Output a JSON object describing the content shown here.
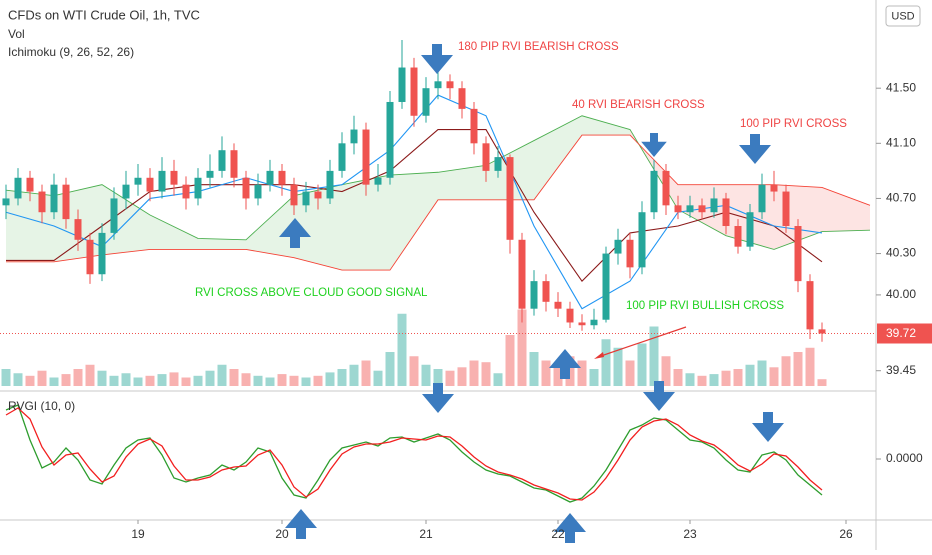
{
  "chart_data": {
    "type": "candlestick",
    "title": "CFDs on WTI Crude Oil, 1h, TVC",
    "volume_label": "Vol",
    "ichimoku_label": "Ichimoku (9, 26, 52, 26)",
    "currency": "USD",
    "up_color": "#26a69a",
    "down_color": "#ef5350",
    "xlim": [
      -0.5,
      72.5
    ],
    "xticks": [
      {
        "value": 11,
        "label": "19"
      },
      {
        "value": 23,
        "label": "20"
      },
      {
        "value": 35,
        "label": "21"
      },
      {
        "value": 46,
        "label": "22"
      },
      {
        "value": 57,
        "label": "23"
      },
      {
        "value": 70,
        "label": "26"
      }
    ],
    "ylim": [
      39.31,
      42.14
    ],
    "yticks": [
      {
        "value": 41.5,
        "label": "41.50"
      },
      {
        "value": 41.1,
        "label": "41.10"
      },
      {
        "value": 40.7,
        "label": "40.70"
      },
      {
        "value": 40.3,
        "label": "40.30"
      },
      {
        "value": 40,
        "label": "40.00"
      },
      39.45
    ],
    "last_price": 39.72,
    "candles": [
      [
        40.65,
        40.8,
        40.55,
        40.7
      ],
      [
        40.7,
        40.92,
        40.65,
        40.85
      ],
      [
        40.85,
        40.9,
        40.68,
        40.75
      ],
      [
        40.75,
        40.8,
        40.52,
        40.6
      ],
      [
        40.6,
        40.88,
        40.55,
        40.8
      ],
      [
        40.8,
        40.85,
        40.48,
        40.55
      ],
      [
        40.55,
        40.62,
        40.32,
        40.4
      ],
      [
        40.4,
        40.45,
        40.08,
        40.15
      ],
      [
        40.15,
        40.52,
        40.1,
        40.45
      ],
      [
        40.45,
        40.78,
        40.4,
        40.7
      ],
      [
        40.7,
        40.9,
        40.62,
        40.8
      ],
      [
        40.8,
        40.95,
        40.72,
        40.85
      ],
      [
        40.85,
        40.92,
        40.68,
        40.75
      ],
      [
        40.75,
        41.0,
        40.7,
        40.9
      ],
      [
        40.9,
        40.98,
        40.72,
        40.8
      ],
      [
        40.8,
        40.86,
        40.62,
        40.7
      ],
      [
        40.7,
        40.92,
        40.65,
        40.85
      ],
      [
        40.85,
        41.02,
        40.78,
        40.9
      ],
      [
        40.9,
        41.15,
        40.85,
        41.05
      ],
      [
        41.05,
        41.1,
        40.78,
        40.85
      ],
      [
        40.85,
        40.9,
        40.62,
        40.7
      ],
      [
        40.7,
        40.88,
        40.65,
        40.8
      ],
      [
        40.8,
        40.98,
        40.75,
        40.9
      ],
      [
        40.9,
        40.95,
        40.72,
        40.8
      ],
      [
        40.8,
        40.85,
        40.58,
        40.65
      ],
      [
        40.65,
        40.82,
        40.6,
        40.75
      ],
      [
        40.75,
        40.8,
        40.62,
        40.7
      ],
      [
        40.7,
        40.98,
        40.66,
        40.9
      ],
      [
        40.9,
        41.18,
        40.85,
        41.1
      ],
      [
        41.1,
        41.3,
        41.02,
        41.2
      ],
      [
        41.2,
        41.25,
        40.72,
        40.8
      ],
      [
        40.8,
        40.95,
        40.75,
        40.85
      ],
      [
        40.85,
        41.48,
        40.8,
        41.4
      ],
      [
        41.4,
        41.85,
        41.35,
        41.65
      ],
      [
        41.65,
        41.72,
        41.22,
        41.3
      ],
      [
        41.3,
        41.58,
        41.25,
        41.5
      ],
      [
        41.5,
        41.62,
        41.42,
        41.55
      ],
      [
        41.55,
        41.6,
        41.42,
        41.5
      ],
      [
        41.5,
        41.55,
        41.28,
        41.35
      ],
      [
        41.35,
        41.4,
        41.02,
        41.1
      ],
      [
        41.1,
        41.15,
        40.82,
        40.9
      ],
      [
        40.9,
        41.08,
        40.85,
        41.0
      ],
      [
        41.0,
        41.02,
        40.3,
        40.4
      ],
      [
        40.4,
        40.45,
        39.8,
        39.9
      ],
      [
        39.9,
        40.18,
        39.85,
        40.1
      ],
      [
        40.1,
        40.15,
        39.88,
        39.95
      ],
      [
        39.95,
        40.02,
        39.84,
        39.9
      ],
      [
        39.9,
        39.95,
        39.76,
        39.8
      ],
      [
        39.8,
        39.86,
        39.74,
        39.78
      ],
      [
        39.78,
        39.9,
        39.75,
        39.82
      ],
      [
        39.82,
        40.35,
        39.8,
        40.3
      ],
      [
        40.3,
        40.48,
        40.22,
        40.4
      ],
      [
        40.4,
        40.45,
        40.12,
        40.2
      ],
      [
        40.2,
        40.68,
        40.15,
        40.6
      ],
      [
        40.6,
        40.98,
        40.55,
        40.9
      ],
      [
        40.9,
        40.95,
        40.58,
        40.65
      ],
      [
        40.65,
        40.72,
        40.55,
        40.6
      ],
      [
        40.6,
        40.72,
        40.56,
        40.65
      ],
      [
        40.65,
        40.7,
        40.55,
        40.6
      ],
      [
        40.6,
        40.78,
        40.56,
        40.7
      ],
      [
        40.7,
        40.74,
        40.44,
        40.5
      ],
      [
        40.5,
        40.55,
        40.3,
        40.35
      ],
      [
        40.35,
        40.66,
        40.32,
        40.6
      ],
      [
        40.6,
        40.88,
        40.55,
        40.8
      ],
      [
        40.8,
        40.9,
        40.68,
        40.75
      ],
      [
        40.75,
        40.8,
        40.45,
        40.5
      ],
      [
        40.5,
        40.55,
        40.02,
        40.1
      ],
      [
        40.1,
        40.15,
        39.68,
        39.75
      ],
      [
        39.75,
        39.8,
        39.66,
        39.72
      ]
    ],
    "volume": {
      "ylim": [
        0,
        100
      ],
      "values": [
        20,
        15,
        12,
        18,
        10,
        14,
        20,
        25,
        18,
        12,
        15,
        10,
        12,
        14,
        16,
        10,
        12,
        18,
        25,
        20,
        15,
        12,
        10,
        14,
        12,
        10,
        12,
        16,
        20,
        25,
        30,
        18,
        40,
        85,
        35,
        25,
        20,
        18,
        22,
        30,
        28,
        15,
        60,
        90,
        40,
        30,
        25,
        35,
        30,
        20,
        55,
        45,
        30,
        50,
        70,
        35,
        20,
        15,
        12,
        14,
        18,
        20,
        25,
        30,
        22,
        35,
        40,
        45,
        8
      ]
    },
    "ichimoku": {
      "conversion": {
        "color": "#2196f3",
        "x": [
          0,
          4,
          8,
          12,
          16,
          20,
          24,
          28,
          32,
          36,
          40,
          44,
          48,
          52,
          56,
          60,
          64,
          68
        ],
        "values": [
          40.6,
          40.5,
          40.35,
          40.7,
          40.75,
          40.85,
          40.75,
          40.8,
          41.05,
          41.45,
          41.3,
          40.5,
          39.9,
          40.1,
          40.6,
          40.65,
          40.5,
          40.45
        ]
      },
      "base": {
        "color": "#8b1a1a",
        "x": [
          0,
          4,
          8,
          12,
          16,
          20,
          24,
          28,
          32,
          36,
          40,
          44,
          48,
          52,
          56,
          60,
          64,
          68
        ],
        "values": [
          40.25,
          40.25,
          40.5,
          40.75,
          40.8,
          40.8,
          40.8,
          40.75,
          40.9,
          41.2,
          41.2,
          40.6,
          40.1,
          40.45,
          40.5,
          40.6,
          40.5,
          40.24
        ]
      },
      "span_a": {
        "color": "#4caf50",
        "x": [
          0,
          4,
          8,
          12,
          16,
          20,
          24,
          28,
          32,
          36,
          40,
          44,
          48,
          52,
          56,
          60,
          64,
          68,
          72
        ],
        "values": [
          40.76,
          40.72,
          40.8,
          40.58,
          40.41,
          40.4,
          40.72,
          40.8,
          40.87,
          40.89,
          40.94,
          41.12,
          41.3,
          41.2,
          40.62,
          40.43,
          40.33,
          40.46,
          40.47
        ]
      },
      "span_b": {
        "color": "#f44336",
        "x": [
          0,
          4,
          8,
          12,
          16,
          20,
          24,
          28,
          32,
          36,
          40,
          44,
          48,
          52,
          56,
          60,
          64,
          68,
          72
        ],
        "values": [
          40.24,
          40.24,
          40.29,
          40.33,
          40.33,
          40.33,
          40.27,
          40.18,
          40.18,
          40.69,
          40.69,
          40.69,
          41.16,
          41.16,
          40.8,
          40.8,
          40.8,
          40.78,
          40.65
        ]
      }
    },
    "rvgi": {
      "label": "RVGI (10, 0)",
      "ylim": [
        -0.305,
        0.335
      ],
      "yticks": [
        {
          "value": 0,
          "label": "0.0000"
        }
      ],
      "series": [
        {
          "color": "#2e9d2e",
          "values": [
            0.245,
            0.27,
            0.095,
            -0.045,
            -0.015,
            0.055,
            -0.005,
            -0.105,
            -0.125,
            -0.03,
            0.055,
            0.095,
            0.105,
            0.02,
            -0.095,
            -0.115,
            -0.095,
            -0.08,
            -0.03,
            -0.055,
            -0.015,
            0.055,
            0.035,
            -0.095,
            -0.18,
            -0.195,
            -0.105,
            -0.005,
            0.055,
            0.07,
            0.085,
            0.065,
            0.105,
            0.11,
            0.085,
            0.105,
            0.125,
            0.095,
            0.035,
            -0.015,
            -0.055,
            -0.075,
            -0.085,
            -0.115,
            -0.145,
            -0.155,
            -0.185,
            -0.215,
            -0.195,
            -0.135,
            -0.055,
            0.045,
            0.145,
            0.17,
            0.205,
            0.195,
            0.145,
            0.095,
            0.085,
            0.055,
            -0.005,
            -0.055,
            -0.065,
            0.02,
            0.035,
            -0.005,
            -0.08,
            -0.13,
            -0.18
          ]
        },
        {
          "color": "#f21f1f",
          "values": [
            0.22,
            0.255,
            0.2,
            0.06,
            -0.03,
            0.02,
            0.03,
            -0.05,
            -0.115,
            -0.085,
            0.01,
            0.075,
            0.1,
            0.065,
            -0.035,
            -0.105,
            -0.105,
            -0.09,
            -0.055,
            -0.04,
            -0.035,
            0.02,
            0.045,
            -0.03,
            -0.14,
            -0.19,
            -0.15,
            -0.055,
            0.025,
            0.06,
            0.075,
            0.075,
            0.085,
            0.105,
            0.1,
            0.095,
            0.115,
            0.11,
            0.065,
            0.01,
            -0.035,
            -0.065,
            -0.08,
            -0.1,
            -0.13,
            -0.15,
            -0.17,
            -0.2,
            -0.205,
            -0.165,
            -0.095,
            -0.005,
            0.095,
            0.16,
            0.19,
            0.2,
            0.17,
            0.12,
            0.09,
            0.07,
            0.025,
            -0.03,
            -0.06,
            -0.025,
            0.025,
            0.015,
            -0.04,
            -0.105,
            -0.155
          ]
        }
      ]
    },
    "annotations": [
      {
        "text": "180 PIP RVI BEARISH CROSS",
        "color": "#ef4444"
      },
      {
        "text": "40 RVI BEARISH CROSS",
        "color": "#ef4444"
      },
      {
        "text": "100 PIP RVI CROSS",
        "color": "#ef4444"
      },
      {
        "text": "RVI CROSS ABOVE CLOUD GOOD SIGNAL",
        "color": "#1fd11f"
      },
      {
        "text": "100 PIP RVI BULLISH CROSS",
        "color": "#1fd11f"
      }
    ]
  }
}
